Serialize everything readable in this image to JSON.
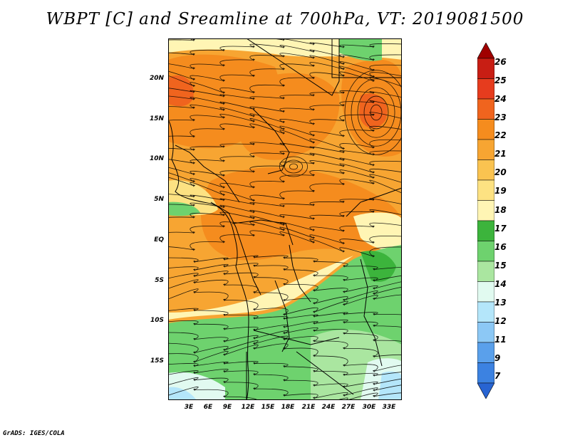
{
  "title": "WBPT [C] and Sreamline at 700hPa, VT: 2019081500",
  "credit": "GrADS: IGES/COLA",
  "lat_labels": [
    "20N",
    "15N",
    "10N",
    "5N",
    "EQ",
    "5S",
    "10S",
    "15S"
  ],
  "lon_labels": [
    "3E",
    "6E",
    "9E",
    "12E",
    "15E",
    "18E",
    "21E",
    "24E",
    "27E",
    "30E",
    "33E"
  ],
  "colorbar": {
    "labels": [
      "26",
      "25",
      "24",
      "23",
      "22",
      "21",
      "20",
      "19",
      "18",
      "17",
      "16",
      "15",
      "14",
      "13",
      "12",
      "11",
      "9",
      "7"
    ],
    "colors": [
      "#a00000",
      "#c81e14",
      "#e63c1e",
      "#f0641e",
      "#f58c1e",
      "#f7a532",
      "#fac350",
      "#fde282",
      "#fff5b4",
      "#3cb43c",
      "#6ed26e",
      "#aae6a0",
      "#e1faf0",
      "#b4e6fa",
      "#8cc8f5",
      "#5aa0eb",
      "#3c82e1",
      "#2864d2"
    ]
  },
  "map": {
    "fill_colors": {
      "hot": "#f0641e",
      "warm": "#f58c1e",
      "mild": "#f7a532",
      "moderate": "#fac350",
      "cool": "#fde282",
      "pale": "#fff5b4",
      "green_dark": "#3cb43c",
      "green": "#6ed26e",
      "green_light": "#aae6a0",
      "cyan": "#e1faf0",
      "blue_light": "#b4e6fa"
    }
  }
}
